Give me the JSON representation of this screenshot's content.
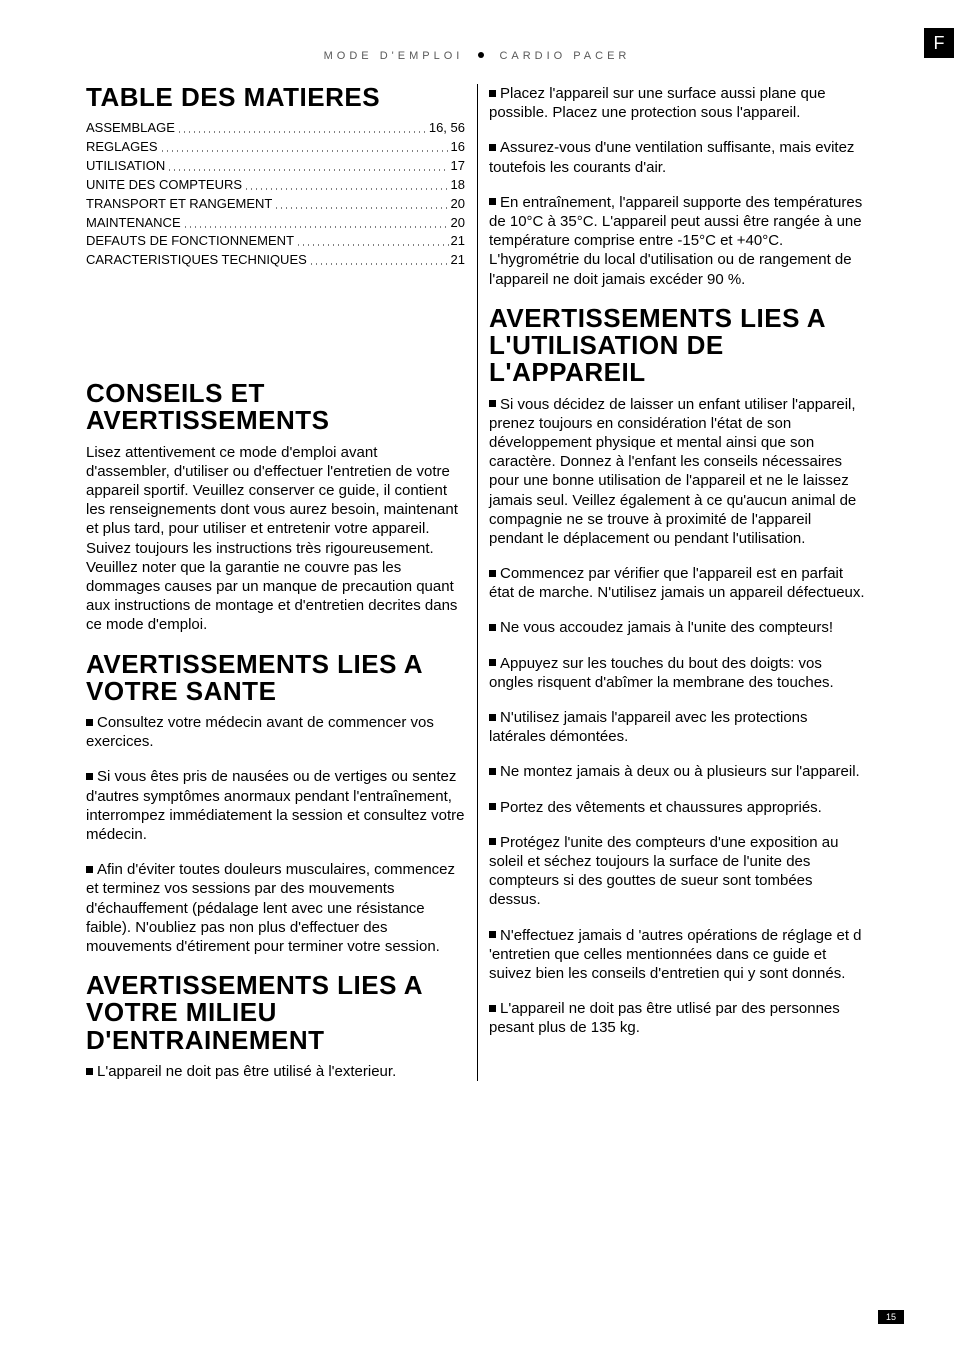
{
  "header": {
    "lang_badge": "F",
    "left": "MODE D'EMPLOI",
    "right": "CARDIO PACER"
  },
  "toc": {
    "title": "TABLE DES MATIERES",
    "items": [
      {
        "label": "ASSEMBLAGE",
        "page": "16, 56"
      },
      {
        "label": "REGLAGES",
        "page": "16"
      },
      {
        "label": "UTILISATION",
        "page": "17"
      },
      {
        "label": "UNITE DES COMPTEURS",
        "page": "18"
      },
      {
        "label": "TRANSPORT ET RANGEMENT",
        "page": "20"
      },
      {
        "label": "MAINTENANCE",
        "page": "20"
      },
      {
        "label": "DEFAUTS DE FONCTIONNEMENT",
        "page": "21"
      },
      {
        "label": "CARACTERISTIQUES TECHNIQUES",
        "page": "21"
      }
    ]
  },
  "sections": [
    {
      "title": "CONSEILS ET AVERTISSEMENTS",
      "paragraphs": [
        "Lisez attentivement ce mode d'emploi avant d'assembler, d'utiliser ou d'effectuer l'entretien de votre appareil sportif. Veuillez conserver ce guide, il contient les renseignements dont vous aurez besoin, maintenant et plus tard, pour utiliser et entretenir votre appareil. Suivez toujours les instructions très rigoureusement. Veuillez noter que la garantie ne couvre pas les dommages causes par un manque de precaution quant aux instructions de montage et d'entretien decrites dans ce mode d'emploi."
      ]
    },
    {
      "title": "AVERTISSEMENTS LIES A VOTRE SANTE",
      "bullets": [
        "Consultez votre médecin avant de commencer vos exercices.",
        "Si vous êtes pris de nausées ou de vertiges ou sentez d'autres symptômes anormaux pendant l'entraînement, interrompez immédiatement la session et consultez votre médecin.",
        "Afin d'éviter toutes douleurs musculaires, commencez et terminez vos sessions par des mouvements d'échauffement (pédalage lent avec une résistance faible). N'oubliez pas non plus d'effectuer des mouvements d'étirement pour terminer votre session."
      ]
    },
    {
      "title": "AVERTISSEMENTS LIES A VOTRE MILIEU D'ENTRAINEMENT",
      "bullets": [
        "L'appareil ne doit pas être utilisé à l'exterieur.",
        "Placez l'appareil sur une surface aussi plane que possible. Placez une protection sous l'appareil.",
        "Assurez-vous d'une ventilation suffisante, mais evitez toutefois les courants d'air.",
        "En entraînement, l'appareil supporte des températures de 10°C à 35°C. L'appareil peut aussi être rangée à une température comprise entre -15°C et +40°C. L'hygrométrie du local d'utilisation ou de rangement de l'appareil ne doit jamais excéder 90 %."
      ]
    },
    {
      "title": "AVERTISSEMENTS LIES A L'UTILISATION DE L'APPAREIL",
      "bullets": [
        "Si vous décidez de laisser un enfant utiliser l'appareil, prenez toujours en considération l'état de son développement physique et mental ainsi que son caractère. Donnez à l'enfant les conseils nécessaires pour une bonne utilisation de l'appareil et ne le laissez jamais seul. Veillez également à ce qu'aucun animal de compagnie ne se trouve à proximité de l'appareil pendant le déplacement ou pendant l'utilisation.",
        "Commencez par vérifier que l'appareil est en parfait état de marche. N'utilisez jamais un appareil défectueux.",
        "Ne vous accoudez jamais à l'unite des compteurs!",
        "Appuyez sur les touches du bout des doigts: vos ongles risquent d'abîmer la membrane des touches.",
        "N'utilisez jamais l'appareil avec les protections latérales démontées.",
        "Ne montez jamais à deux ou à plusieurs sur l'appareil.",
        "Portez des vêtements et chaussures appropriés.",
        "Protégez l'unite des compteurs d'une exposition au soleil et séchez toujours la surface de l'unite des compteurs si des gouttes de sueur sont tombées dessus.",
        "N'effectuez jamais d 'autres opérations de réglage et d 'entretien que celles mentionnées dans ce guide et suivez bien les conseils d'entretien qui y sont donnés.",
        "L'appareil ne doit pas être utlisé par des personnes pesant plus de 135 kg."
      ]
    }
  ],
  "footer": {
    "page_number": "15"
  },
  "colors": {
    "text": "#000000",
    "bg": "#ffffff",
    "header_gray": "#595959"
  }
}
